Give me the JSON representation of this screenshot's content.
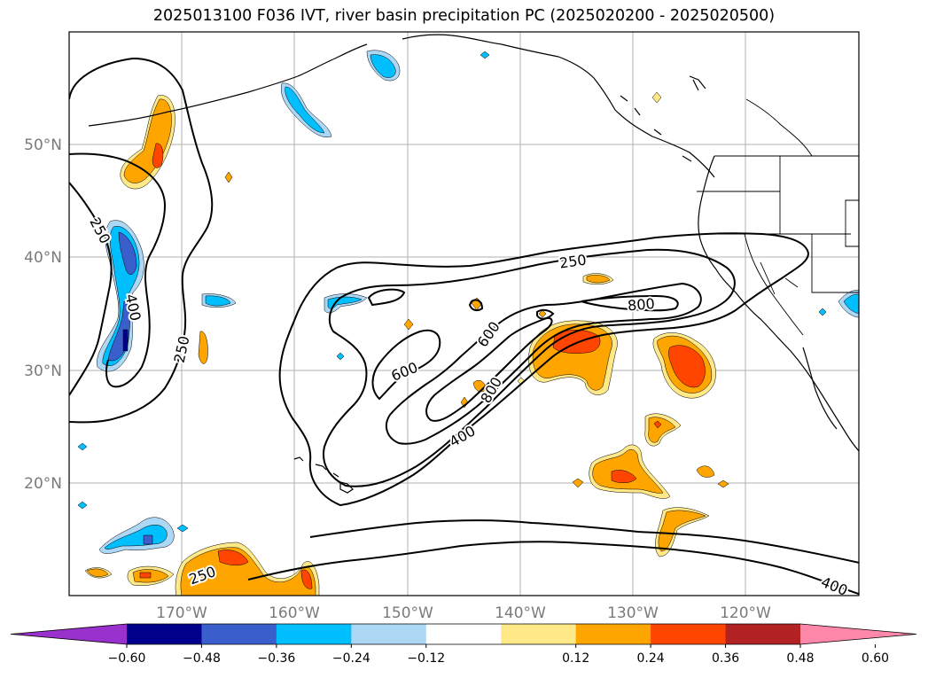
{
  "title": "2025013100 F036 IVT, river basin precipitation PC (2025020200 - 2025020500)",
  "lat_labels": [
    "50°N",
    "40°N",
    "30°N",
    "20°N"
  ],
  "lon_labels": [
    "170°W",
    "160°W",
    "150°W",
    "140°W",
    "130°W",
    "120°W"
  ],
  "colorbar": {
    "ticks": [
      "−0.60",
      "−0.48",
      "−0.36",
      "−0.24",
      "−0.12",
      "0.12",
      "0.24",
      "0.36",
      "0.48",
      "0.60"
    ],
    "colors": [
      "#9932cc",
      "#00008b",
      "#3a5fcd",
      "#00bfff",
      "#add8f5",
      "#ffffff",
      "#ffe888",
      "#ffa500",
      "#ff4500",
      "#b22222",
      "#ff88aa"
    ]
  },
  "ivt_contour_labels": [
    "250",
    "400",
    "250",
    "250",
    "600",
    "600",
    "800",
    "400",
    "800",
    "250",
    "400"
  ],
  "map_extent": {
    "lon": [
      -180,
      -110
    ],
    "lat": [
      10,
      60
    ]
  }
}
